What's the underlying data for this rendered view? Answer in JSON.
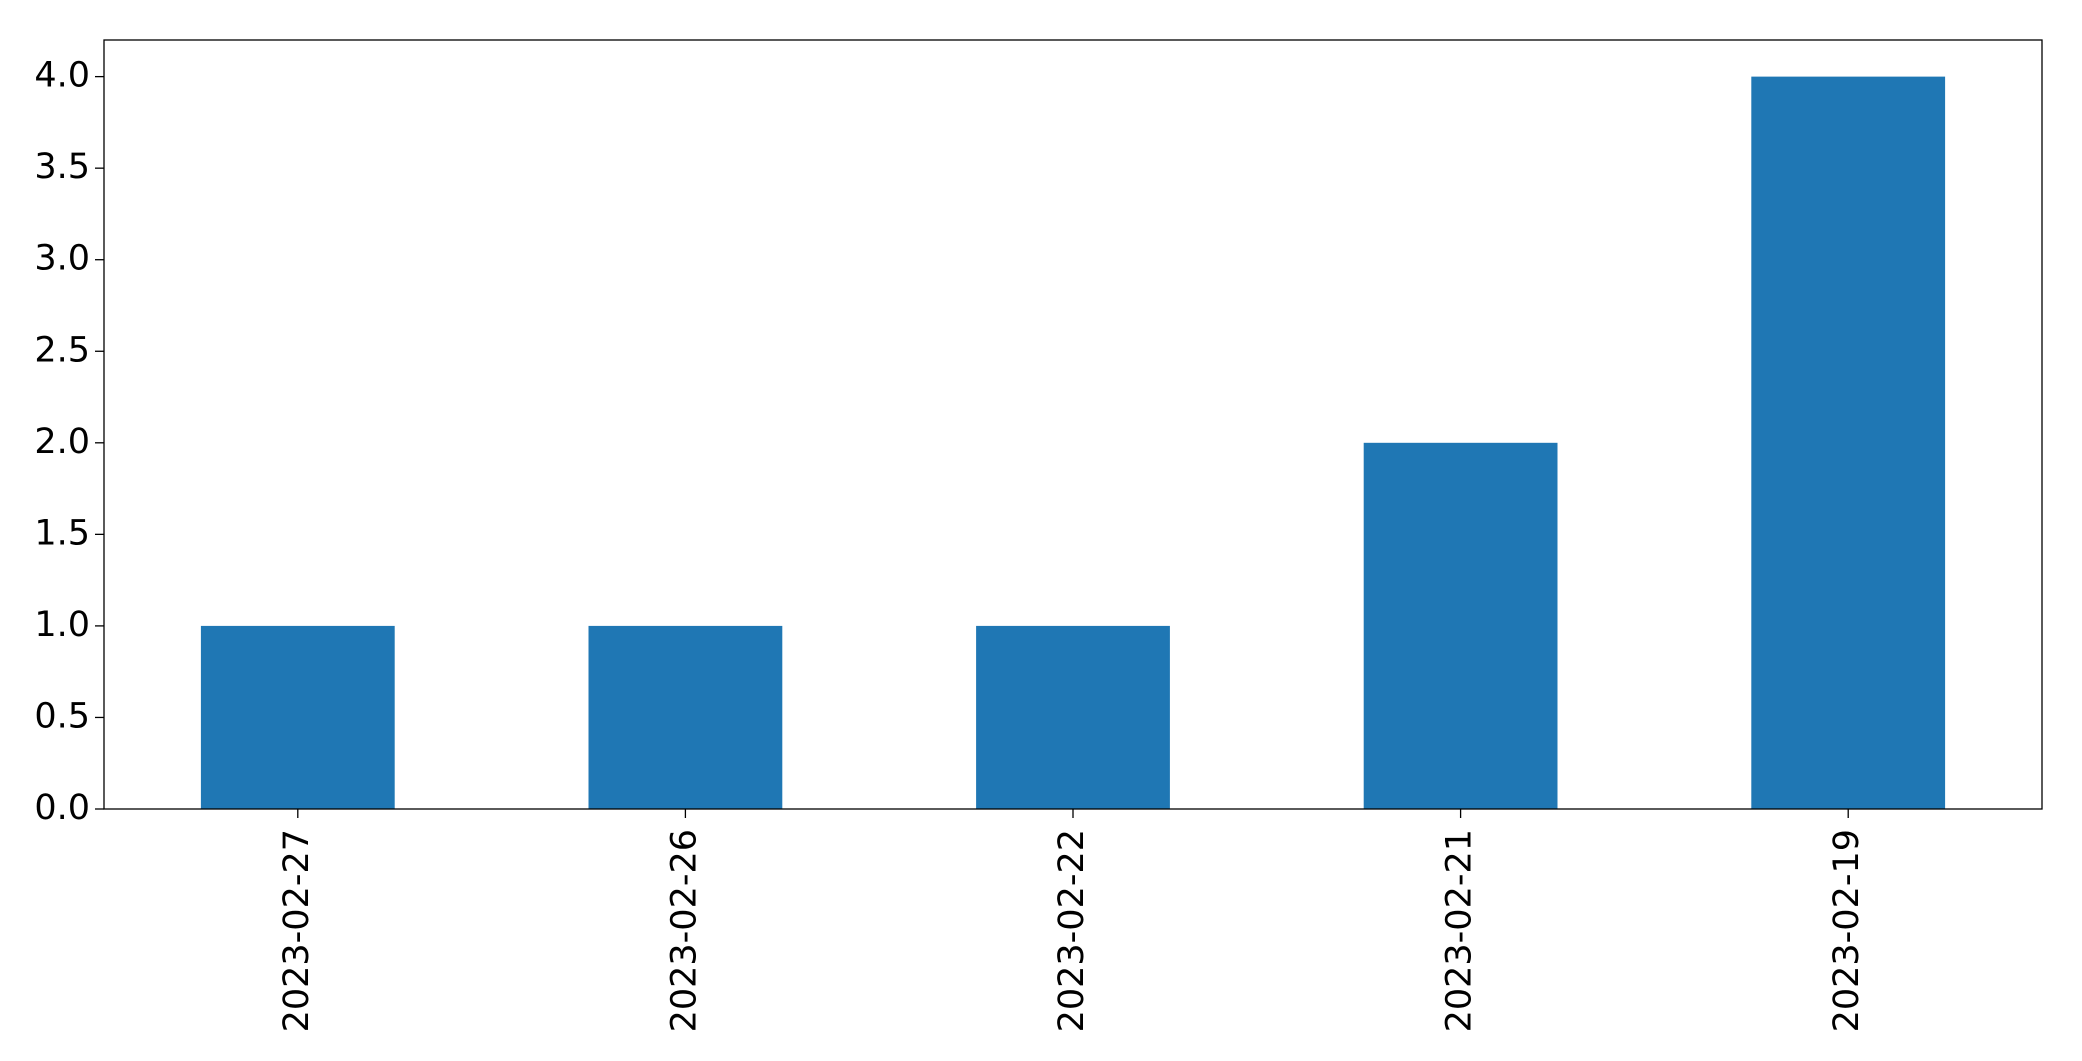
{
  "chart_data": {
    "type": "bar",
    "categories": [
      "2023-02-27",
      "2023-02-26",
      "2023-02-22",
      "2023-02-21",
      "2023-02-19"
    ],
    "values": [
      1,
      1,
      1,
      2,
      4
    ],
    "color": "#1f77b4",
    "ylim": [
      0,
      4.2
    ],
    "yticks": [
      {
        "value": 0,
        "label": "0.0"
      },
      {
        "value": 0.5,
        "label": "0.5"
      },
      {
        "value": 1,
        "label": "1.0"
      },
      {
        "value": 1.5,
        "label": "1.5"
      },
      {
        "value": 2,
        "label": "2.0"
      },
      {
        "value": 2.5,
        "label": "2.5"
      },
      {
        "value": 3,
        "label": "3.0"
      },
      {
        "value": 3.5,
        "label": "3.5"
      },
      {
        "value": 4,
        "label": "4.0"
      }
    ],
    "grid": false
  }
}
